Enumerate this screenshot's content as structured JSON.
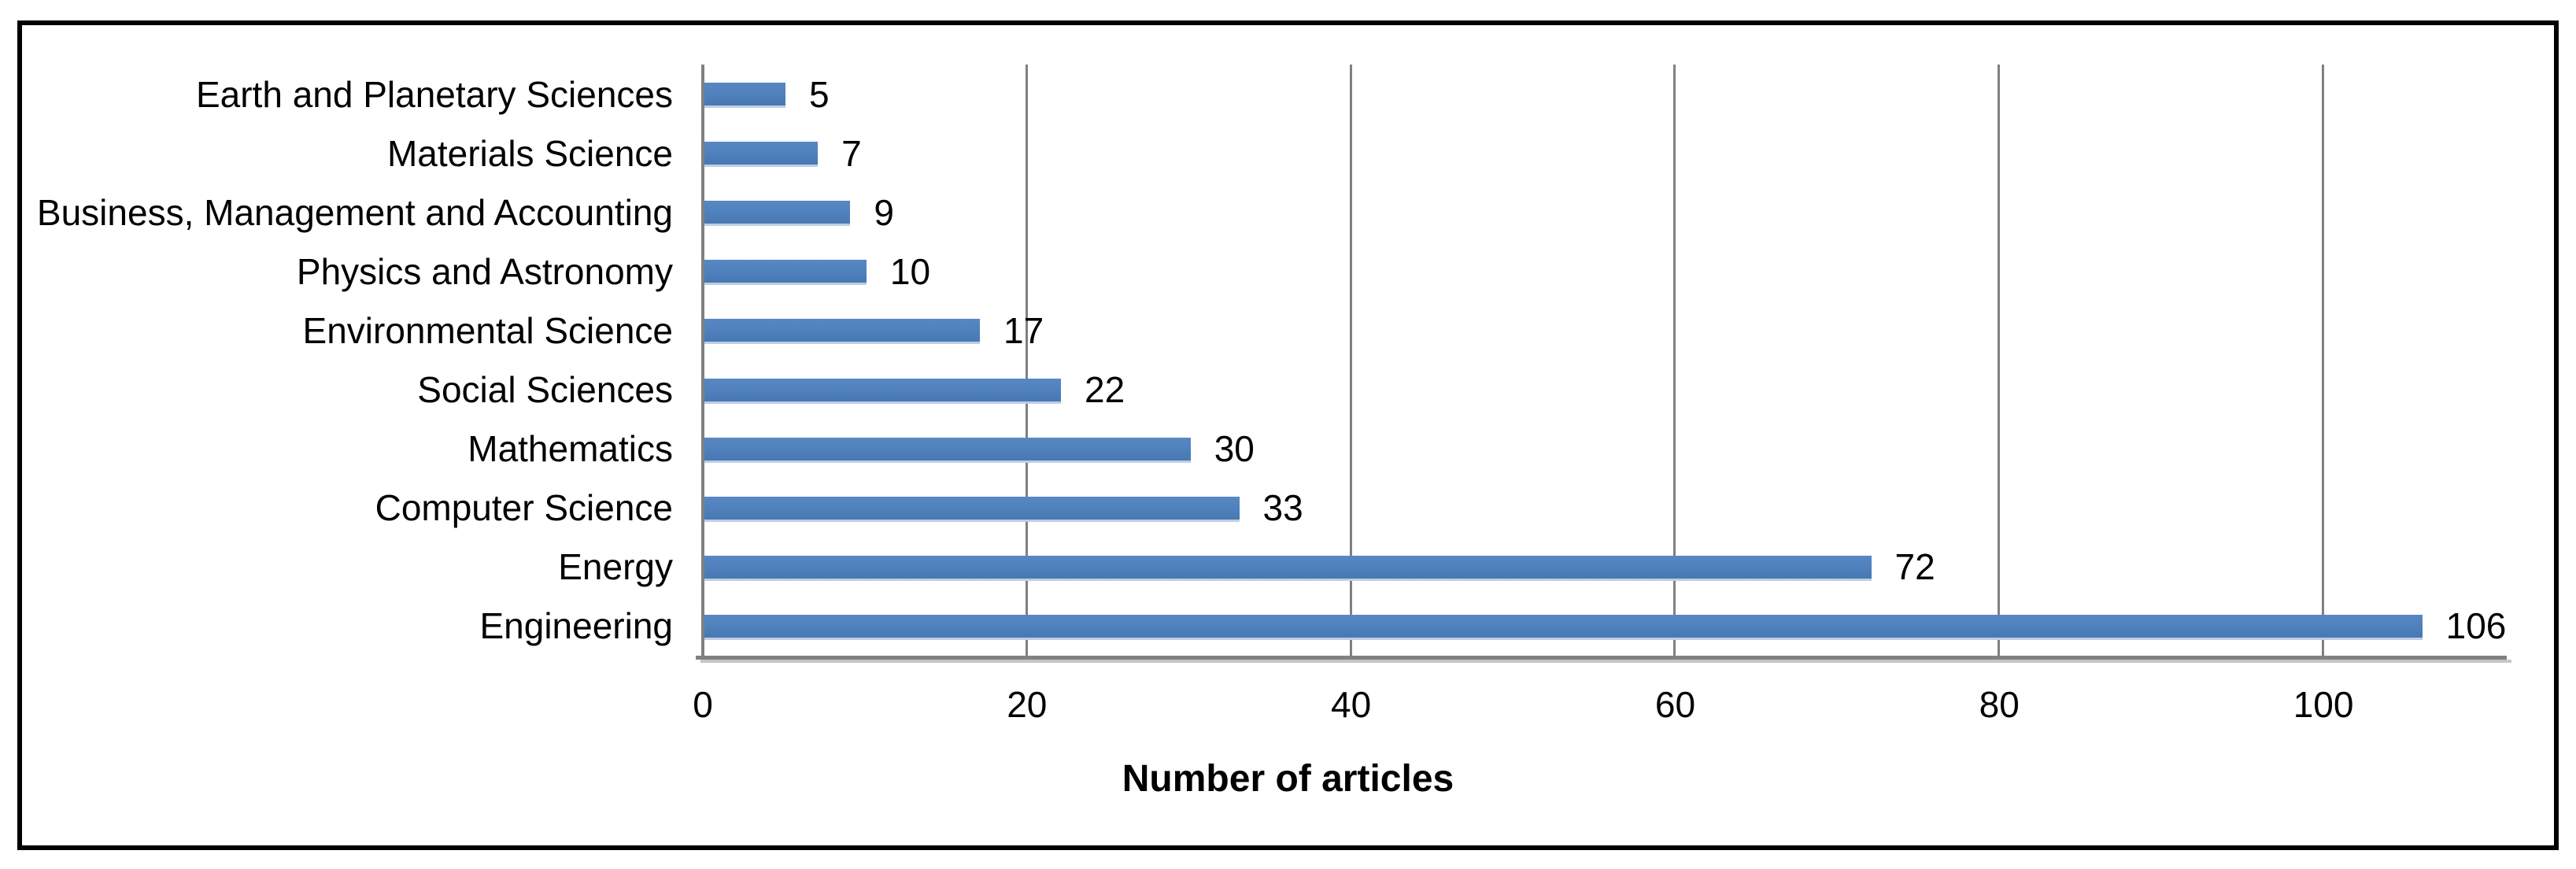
{
  "chart_data": {
    "type": "bar",
    "orientation": "horizontal",
    "title": "",
    "xlabel": "Number of articles",
    "ylabel": "",
    "categories": [
      "Earth and Planetary Sciences",
      "Materials Science",
      "Business, Management and Accounting",
      "Physics and Astronomy",
      "Environmental Science",
      "Social Sciences",
      "Mathematics",
      "Computer Science",
      "Energy",
      "Engineering"
    ],
    "values": [
      5,
      7,
      9,
      10,
      17,
      22,
      30,
      33,
      72,
      106
    ],
    "data_labels_shown": true,
    "xlim": [
      0,
      110
    ],
    "xticks": [
      0,
      20,
      40,
      60,
      80,
      100
    ],
    "grid": "vertical gridlines at x ticks",
    "legend": "none",
    "colors": {
      "bar": "#4f81bd",
      "gridline": "#808080",
      "axis_line": "#808080",
      "axis_shadow": "#c6c6c6",
      "border": "#000000",
      "background": "#ffffff",
      "text": "#000000"
    }
  }
}
